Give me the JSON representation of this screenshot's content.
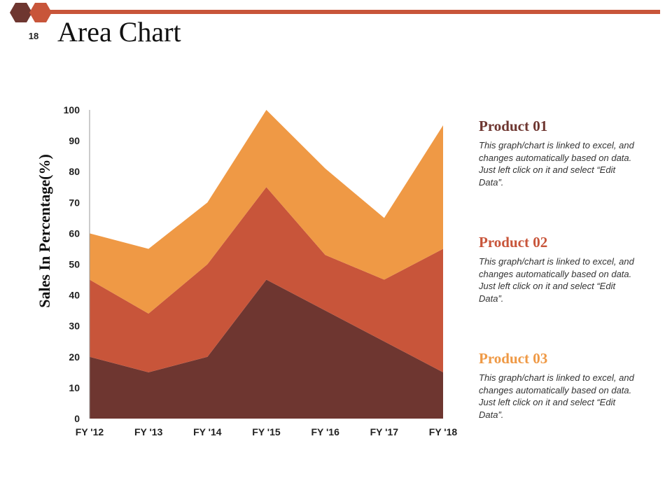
{
  "slide": {
    "number": "18",
    "title": "Area Chart"
  },
  "colors": {
    "accent_bar": "#c8553a",
    "hex_dark": "#6e3630",
    "hex_light": "#c8553a"
  },
  "legend": [
    {
      "title": "Product 01",
      "color": "#6e3630",
      "description": "This graph/chart is linked to excel, and changes automatically based on data. Just left click on it and select “Edit Data”."
    },
    {
      "title": "Product 02",
      "color": "#c8553a",
      "description": "This graph/chart is linked to excel, and changes automatically based on data. Just left click on it and select “Edit Data”."
    },
    {
      "title": "Product 03",
      "color": "#ef9945",
      "description": "This graph/chart is linked to excel, and changes automatically based on data. Just left click on it and select “Edit Data”."
    }
  ],
  "chart_data": {
    "type": "area",
    "stacked": true,
    "title": "",
    "xlabel": "",
    "ylabel": "Sales In Percentage(%)",
    "categories": [
      "FY '12",
      "FY '13",
      "FY '14",
      "FY '15",
      "FY '16",
      "FY '17",
      "FY '18"
    ],
    "ylim": [
      0,
      100
    ],
    "yticks": [
      0,
      10,
      20,
      30,
      40,
      50,
      60,
      70,
      80,
      90,
      100
    ],
    "grid": false,
    "legend_position": "right",
    "series": [
      {
        "name": "Product 01",
        "color": "#6e3630",
        "values": [
          20,
          15,
          20,
          45,
          35,
          25,
          15
        ]
      },
      {
        "name": "Product 02",
        "color": "#c8553a",
        "values": [
          25,
          19,
          30,
          30,
          18,
          20,
          40
        ]
      },
      {
        "name": "Product 03",
        "color": "#ef9945",
        "values": [
          15,
          21,
          20,
          25,
          28,
          20,
          40
        ]
      }
    ]
  }
}
